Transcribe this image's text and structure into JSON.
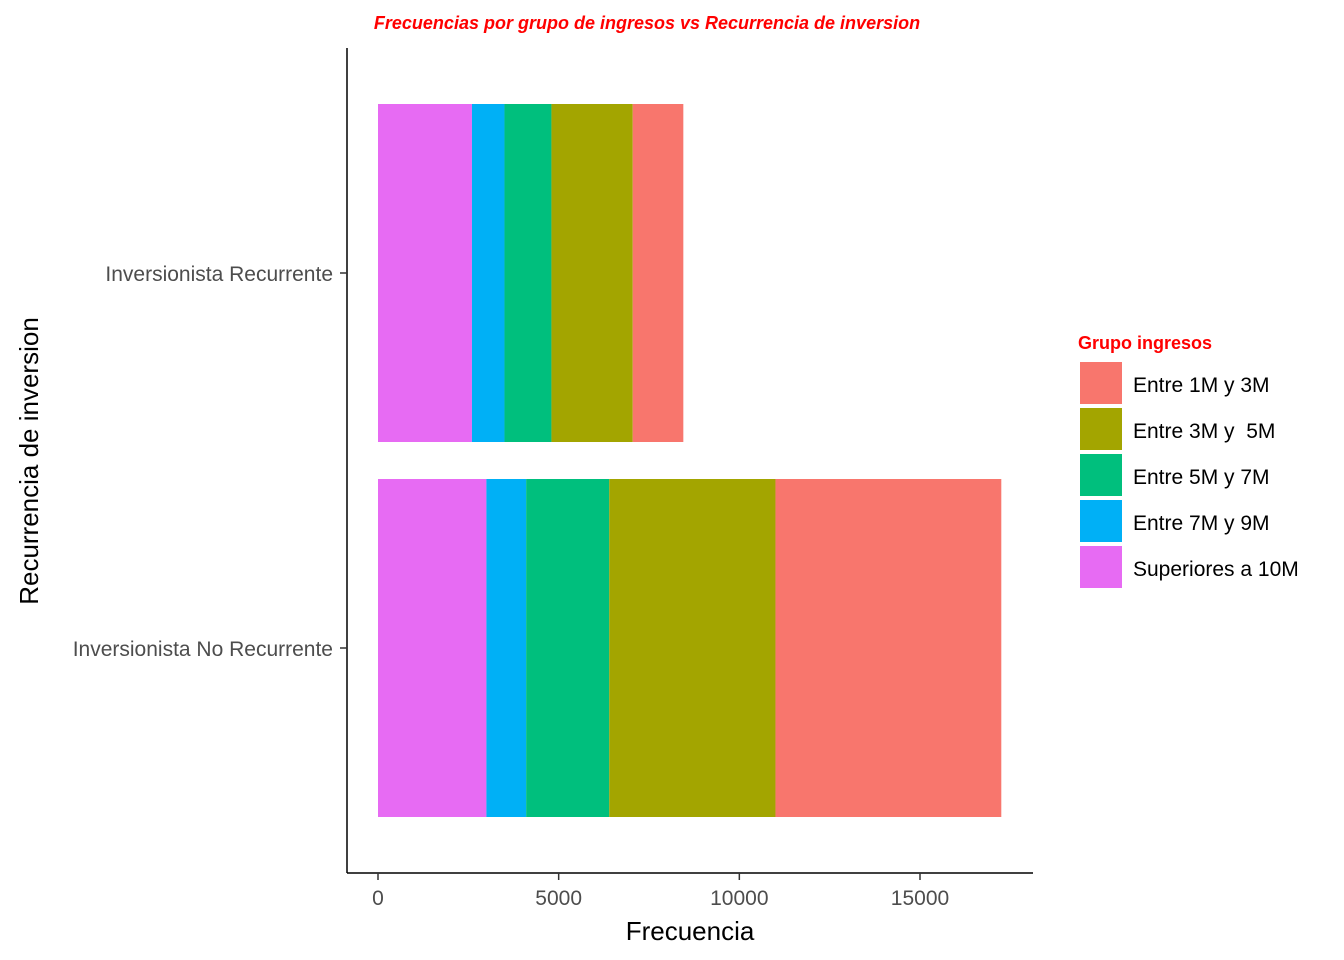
{
  "chart_data": {
    "type": "bar",
    "orientation": "horizontal",
    "stacked": true,
    "title": "Frecuencias por grupo de ingresos vs Recurrencia de inversion",
    "xlabel": "Frecuencia",
    "ylabel": "Recurrencia de inversion",
    "xlim": [
      0,
      18000
    ],
    "xticks": [
      0,
      5000,
      10000,
      15000
    ],
    "xtick_labels": [
      "0",
      "5000",
      "10000",
      "15000"
    ],
    "grid": false,
    "legend_position": "right",
    "legend_title": "Grupo ingresos",
    "categories": [
      "Inversionista No Recurrente",
      "Inversionista Recurrente"
    ],
    "series": [
      {
        "name": "Superiores a 10M",
        "color": "#E76BF3",
        "values": [
          3000,
          2600
        ]
      },
      {
        "name": "Entre 7M y 9M",
        "color": "#00B0F6",
        "values": [
          1100,
          900
        ]
      },
      {
        "name": "Entre 5M y 7M",
        "color": "#00BF7D",
        "values": [
          2300,
          1300
        ]
      },
      {
        "name": "Entre 3M y  5M",
        "color": "#A3A500",
        "values": [
          4600,
          2250
        ]
      },
      {
        "name": "Entre 1M y 3M",
        "color": "#F8766D",
        "values": [
          6250,
          1400
        ]
      }
    ],
    "legend_order": [
      "Entre 1M y 3M",
      "Entre 3M y  5M",
      "Entre 5M y 7M",
      "Entre 7M y 9M",
      "Superiores a 10M"
    ]
  }
}
